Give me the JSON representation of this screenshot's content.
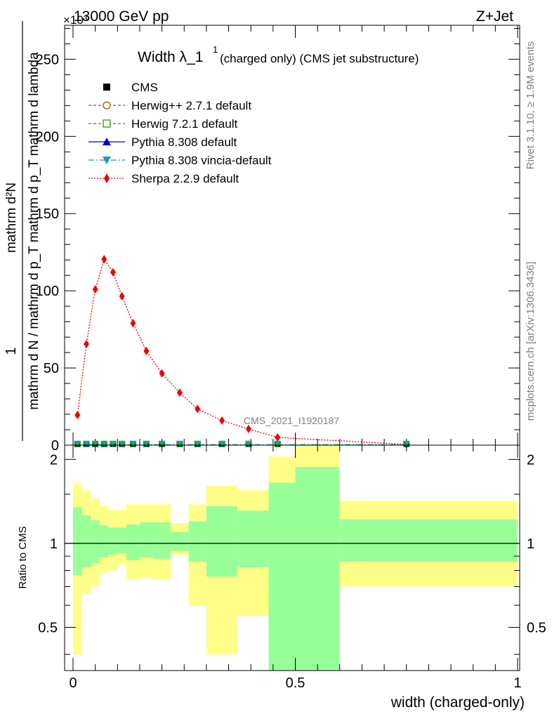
{
  "header": {
    "energy_label": "13000 GeV pp",
    "process_label": "Z+Jet",
    "exponent_label": "×10³"
  },
  "side_labels": {
    "rivet": "Rivet 3.1.10, ≥ 1.9M events",
    "mcplots": "mcplots.cern.ch [arXiv:1306.3436]"
  },
  "watermark": "CMS_2021_I1920187",
  "chart_data": [
    {
      "type": "line",
      "title_main": "Width λ_1",
      "title_sup": "1",
      "title_rest": "(charged only) (CMS jet substructure)",
      "xlabel": "width (charged-only)",
      "ylabel_num": "mathrm d²N",
      "ylabel_den": "mathrm d N / mathrm d p_T mathrm d p_T mathrm d lambda",
      "ylabel_one": "1",
      "xlim": [
        0,
        1
      ],
      "ylim": [
        0,
        272
      ],
      "yscale_factor": 1000,
      "yticks": [
        0,
        50,
        100,
        150,
        200,
        250
      ],
      "xticks": [
        0,
        0.5,
        1
      ],
      "xtick_labels": [
        "0",
        "0.5",
        "1"
      ],
      "legend": [
        {
          "name": "CMS",
          "color": "#000000",
          "marker": "square-filled",
          "dash": "none"
        },
        {
          "name": "Herwig++ 2.7.1 default",
          "color": "#a05000",
          "marker": "circle-open",
          "dash": "4,3"
        },
        {
          "name": "Herwig 7.2.1 default",
          "color": "#339900",
          "marker": "square-open",
          "dash": "4,3"
        },
        {
          "name": "Pythia 8.308 default",
          "color": "#0000cc",
          "marker": "triangle-up",
          "dash": "none"
        },
        {
          "name": "Pythia 8.308 vincia-default",
          "color": "#1a9eb2",
          "marker": "triangle-down",
          "dash": "8,3,2,3"
        },
        {
          "name": "Sherpa 2.2.9 default",
          "color": "#ee0000",
          "marker": "diamond",
          "dash": "2,2"
        }
      ],
      "series": [
        {
          "name": "Sherpa 2.2.9 default",
          "x": [
            0.01,
            0.03,
            0.05,
            0.07,
            0.09,
            0.11,
            0.135,
            0.165,
            0.2,
            0.24,
            0.28,
            0.335,
            0.395,
            0.46,
            0.75
          ],
          "y": [
            19.5,
            65.5,
            101,
            120.5,
            112,
            96.5,
            79,
            61,
            46.5,
            34,
            23.5,
            16,
            10.5,
            5,
            0.5
          ]
        },
        {
          "name": "Generators near zero",
          "x": [
            0.01,
            0.03,
            0.05,
            0.07,
            0.09,
            0.11,
            0.135,
            0.165,
            0.2,
            0.24,
            0.28,
            0.335,
            0.395,
            0.46,
            0.75
          ],
          "y": [
            0.3,
            0.3,
            0.3,
            0.3,
            0.3,
            0.3,
            0.3,
            0.3,
            0.3,
            0.3,
            0.3,
            0.3,
            0.3,
            0.3,
            0.3
          ]
        }
      ]
    },
    {
      "type": "area",
      "ylabel": "Ratio to CMS",
      "xlim": [
        0,
        1
      ],
      "ylim": [
        0.35,
        2.25
      ],
      "yticks": [
        0.5,
        1,
        2
      ],
      "ytick_labels": [
        "0.5",
        "1",
        "2"
      ],
      "bins": [
        {
          "x0": 0.0,
          "x1": 0.02,
          "green": [
            0.77,
            1.35
          ],
          "yellow": [
            0.4,
            1.65
          ]
        },
        {
          "x0": 0.02,
          "x1": 0.04,
          "green": [
            0.82,
            1.26
          ],
          "yellow": [
            0.66,
            1.55
          ]
        },
        {
          "x0": 0.04,
          "x1": 0.06,
          "green": [
            0.85,
            1.21
          ],
          "yellow": [
            0.7,
            1.45
          ]
        },
        {
          "x0": 0.06,
          "x1": 0.08,
          "green": [
            0.89,
            1.16
          ],
          "yellow": [
            0.78,
            1.36
          ]
        },
        {
          "x0": 0.08,
          "x1": 0.1,
          "green": [
            0.91,
            1.14
          ],
          "yellow": [
            0.8,
            1.32
          ]
        },
        {
          "x0": 0.1,
          "x1": 0.12,
          "green": [
            0.92,
            1.14
          ],
          "yellow": [
            0.84,
            1.32
          ]
        },
        {
          "x0": 0.12,
          "x1": 0.15,
          "green": [
            0.87,
            1.17
          ],
          "yellow": [
            0.74,
            1.38
          ]
        },
        {
          "x0": 0.15,
          "x1": 0.18,
          "green": [
            0.89,
            1.19
          ],
          "yellow": [
            0.75,
            1.38
          ]
        },
        {
          "x0": 0.18,
          "x1": 0.22,
          "green": [
            0.88,
            1.19
          ],
          "yellow": [
            0.74,
            1.38
          ]
        },
        {
          "x0": 0.22,
          "x1": 0.26,
          "green": [
            0.94,
            1.1
          ],
          "yellow": [
            0.91,
            1.18
          ]
        },
        {
          "x0": 0.26,
          "x1": 0.3,
          "green": [
            0.86,
            1.2
          ],
          "yellow": [
            0.6,
            1.38
          ]
        },
        {
          "x0": 0.3,
          "x1": 0.37,
          "green": [
            0.76,
            1.36
          ],
          "yellow": [
            0.4,
            1.61
          ]
        },
        {
          "x0": 0.37,
          "x1": 0.44,
          "green": [
            0.82,
            1.31
          ],
          "yellow": [
            0.55,
            1.55
          ]
        },
        {
          "x0": 0.44,
          "x1": 0.5,
          "green": [
            0.35,
            1.65
          ],
          "yellow": [
            0.35,
            2.05
          ]
        },
        {
          "x0": 0.5,
          "x1": 0.6,
          "green": [
            0.35,
            1.88
          ],
          "yellow": [
            0.35,
            2.25
          ]
        },
        {
          "x0": 0.6,
          "x1": 1.0,
          "green": [
            0.86,
            1.22
          ],
          "yellow": [
            0.7,
            1.42
          ]
        }
      ]
    }
  ]
}
